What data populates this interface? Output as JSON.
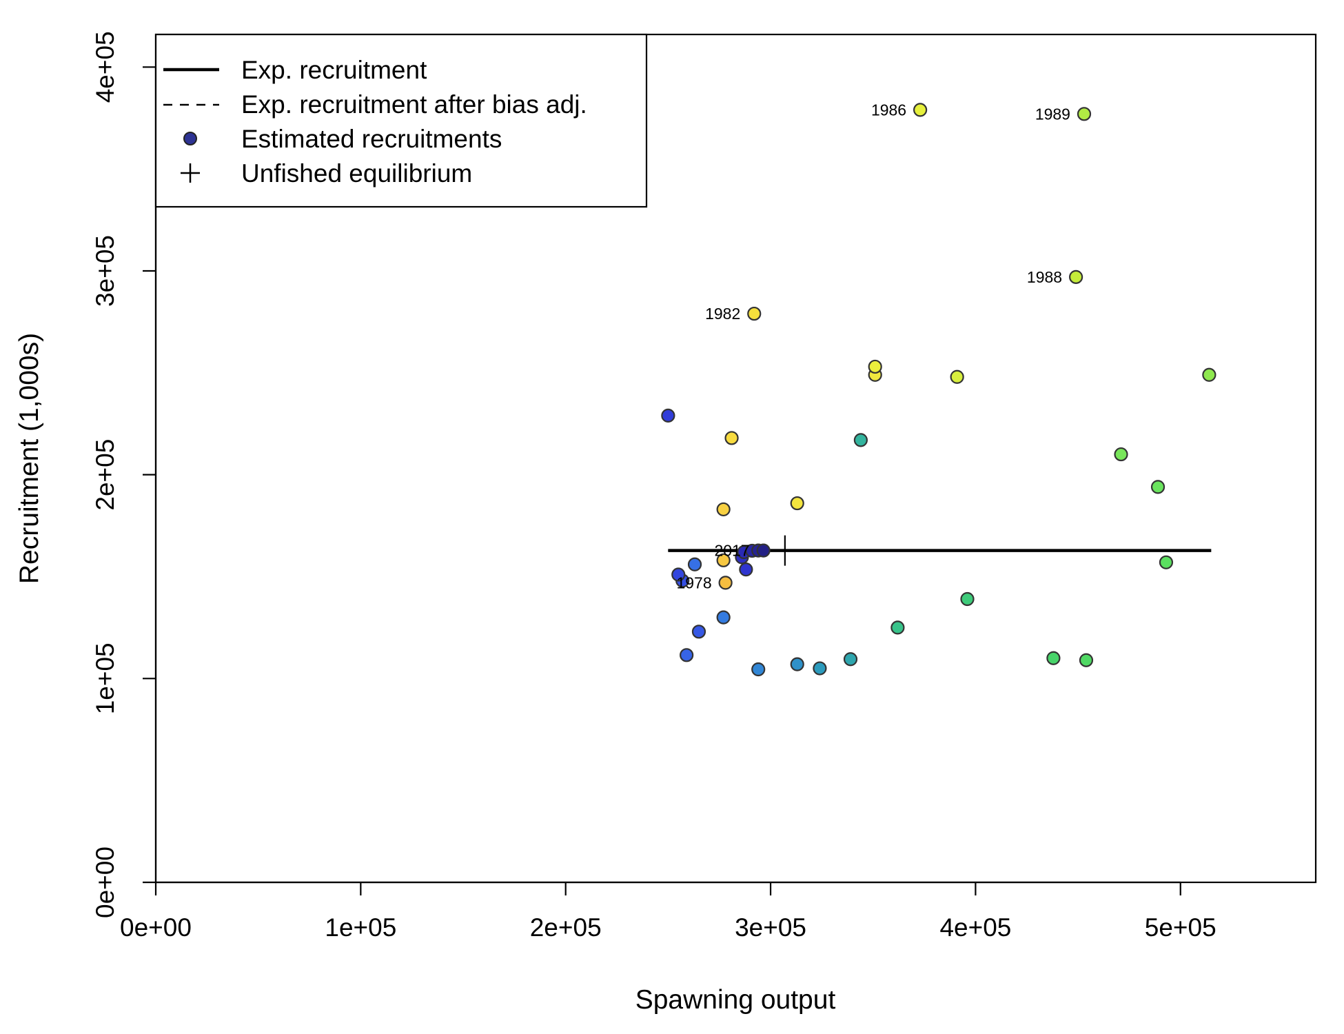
{
  "chart_data": {
    "type": "scatter",
    "xlabel": "Spawning output",
    "ylabel": "Recruitment (1,000s)",
    "xlim": [
      0,
      566000
    ],
    "ylim": [
      0,
      416000
    ],
    "xticks": [
      0,
      100000,
      200000,
      300000,
      400000,
      500000
    ],
    "yticks": [
      0,
      100000,
      200000,
      300000,
      400000
    ],
    "xtick_labels": [
      "0e+00",
      "1e+05",
      "2e+05",
      "3e+05",
      "4e+05",
      "5e+05"
    ],
    "ytick_labels": [
      "0e+00",
      "1e+05",
      "2e+05",
      "3e+05",
      "4e+05"
    ],
    "grid": false,
    "legend": {
      "placement": "top-left",
      "entries": [
        {
          "label": "Exp. recruitment",
          "symbol": "solid-line"
        },
        {
          "label": "Exp. recruitment after bias adj.",
          "symbol": "dashed-line"
        },
        {
          "label": "Estimated recruitments",
          "symbol": "point",
          "color": "#2d3393"
        },
        {
          "label": "Unfished equilibrium",
          "symbol": "plus"
        }
      ]
    },
    "expected_recruitment": {
      "x": [
        250000,
        515000
      ],
      "y": [
        162800,
        162800
      ],
      "color": "#000000"
    },
    "expected_recruitment_bias_adj": {
      "x": [
        250000,
        515000
      ],
      "y": [
        162800,
        162800
      ],
      "color": "#000000"
    },
    "unfished_equilibrium": {
      "x": 307000,
      "y": 162800
    },
    "points": [
      {
        "x": 278000,
        "y": 147000,
        "color": "#f6be40",
        "label": "1978"
      },
      {
        "x": 277000,
        "y": 158000,
        "color": "#f7c841"
      },
      {
        "x": 277000,
        "y": 183000,
        "color": "#f8d142"
      },
      {
        "x": 281000,
        "y": 218000,
        "color": "#f8dc40"
      },
      {
        "x": 292000,
        "y": 279000,
        "color": "#f6e03c",
        "label": "1982"
      },
      {
        "x": 313000,
        "y": 186000,
        "color": "#f4e53e"
      },
      {
        "x": 351000,
        "y": 249000,
        "color": "#f0e83e"
      },
      {
        "x": 351000,
        "y": 253000,
        "color": "#ecee3c"
      },
      {
        "x": 373000,
        "y": 379000,
        "color": "#e6f03c",
        "label": "1986"
      },
      {
        "x": 391000,
        "y": 248000,
        "color": "#d8ef3e"
      },
      {
        "x": 449000,
        "y": 297000,
        "color": "#c5ec3a",
        "label": "1988"
      },
      {
        "x": 453000,
        "y": 377000,
        "color": "#b1ec44",
        "label": "1989"
      },
      {
        "x": 514000,
        "y": 249000,
        "color": "#8ee84e"
      },
      {
        "x": 471000,
        "y": 210000,
        "color": "#78e65a"
      },
      {
        "x": 489000,
        "y": 194000,
        "color": "#6ae45e"
      },
      {
        "x": 493000,
        "y": 157000,
        "color": "#5bdf60"
      },
      {
        "x": 454000,
        "y": 109000,
        "color": "#50d964"
      },
      {
        "x": 438000,
        "y": 110000,
        "color": "#48d46a"
      },
      {
        "x": 396000,
        "y": 139000,
        "color": "#3ecb7a"
      },
      {
        "x": 362000,
        "y": 125000,
        "color": "#38c38a"
      },
      {
        "x": 344000,
        "y": 217000,
        "color": "#33b49e"
      },
      {
        "x": 339000,
        "y": 109500,
        "color": "#2ea6ae"
      },
      {
        "x": 324000,
        "y": 105000,
        "color": "#2c9bbd"
      },
      {
        "x": 313000,
        "y": 107000,
        "color": "#2f91c9"
      },
      {
        "x": 294000,
        "y": 104500,
        "color": "#3186d5"
      },
      {
        "x": 277000,
        "y": 130000,
        "color": "#347be0"
      },
      {
        "x": 263000,
        "y": 156000,
        "color": "#3670e6"
      },
      {
        "x": 259000,
        "y": 111500,
        "color": "#3764e6"
      },
      {
        "x": 265000,
        "y": 123000,
        "color": "#3658e4"
      },
      {
        "x": 257000,
        "y": 148000,
        "color": "#354fe2"
      },
      {
        "x": 255000,
        "y": 151000,
        "color": "#3346de"
      },
      {
        "x": 250000,
        "y": 229000,
        "color": "#313dd9"
      },
      {
        "x": 288000,
        "y": 153500,
        "color": "#2f35cf"
      },
      {
        "x": 286000,
        "y": 159500,
        "color": "#2d2fc2"
      },
      {
        "x": 287000,
        "y": 162000,
        "color": "#2a2ab4"
      },
      {
        "x": 291000,
        "y": 162700,
        "color": "#2826a3"
      },
      {
        "x": 294000,
        "y": 162800,
        "color": "#262394"
      },
      {
        "x": 296500,
        "y": 162800,
        "color": "#232085",
        "label": "2017"
      }
    ]
  }
}
